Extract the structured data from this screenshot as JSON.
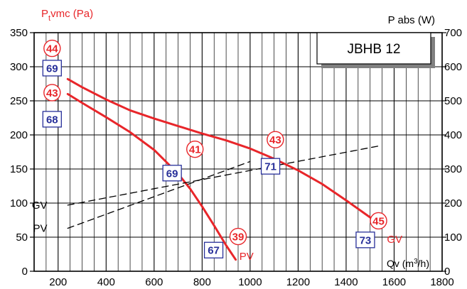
{
  "chart_data": {
    "type": "line",
    "title_box": "JBHB 12",
    "y_left_label_main": "P",
    "y_left_label_sub": "t",
    "y_left_label_rest": "vmc (Pa)",
    "y_right_label": "P  abs (W)",
    "x_label_main": "Qv (m",
    "x_label_sup": "3",
    "x_label_rest": "/h)",
    "xlim": [
      100,
      1800
    ],
    "ylim_left": [
      0,
      350
    ],
    "ylim_right": [
      0,
      700
    ],
    "x_ticks": [
      200,
      400,
      600,
      800,
      1000,
      1200,
      1400,
      1600,
      1800
    ],
    "x_minor_step": 50,
    "y_left_ticks": [
      0,
      50,
      100,
      150,
      200,
      250,
      300,
      350
    ],
    "y_right_ticks": [
      0,
      100,
      200,
      300,
      400,
      500,
      600,
      700
    ],
    "grid": true,
    "series": [
      {
        "name": "PV",
        "kind": "pressure",
        "color": "#e8262a",
        "x": [
          240,
          300,
          400,
          500,
          600,
          700,
          750,
          800,
          850,
          900,
          940
        ],
        "y": [
          260,
          247,
          226,
          204,
          178,
          143,
          121,
          95,
          67,
          38,
          17
        ]
      },
      {
        "name": "GV",
        "kind": "pressure",
        "color": "#e8262a",
        "x": [
          240,
          300,
          400,
          500,
          600,
          700,
          800,
          900,
          1000,
          1100,
          1200,
          1300,
          1400,
          1500,
          1550
        ],
        "y": [
          282,
          270,
          252,
          236,
          224,
          213,
          202,
          192,
          180,
          165,
          148,
          128,
          104,
          79,
          65
        ]
      },
      {
        "name": "GV",
        "kind": "power",
        "color": "#000000",
        "dashed": true,
        "x": [
          240,
          1540
        ],
        "y": [
          97,
          184
        ]
      },
      {
        "name": "PV",
        "kind": "power",
        "color": "#000000",
        "dashed": true,
        "x": [
          240,
          1000
        ],
        "y": [
          63,
          161
        ]
      }
    ],
    "series_labels": [
      {
        "text": "GV",
        "x": 155,
        "y": 97,
        "color": "#000000",
        "anchor": "end"
      },
      {
        "text": "PV",
        "x": 155,
        "y": 63,
        "color": "#000000",
        "anchor": "end"
      },
      {
        "text": "PV",
        "x": 955,
        "y": 22,
        "color": "#e8262a",
        "anchor": "start"
      },
      {
        "text": "GV",
        "x": 1570,
        "y": 47,
        "color": "#e8262a",
        "anchor": "start"
      }
    ],
    "sound_power_circles": [
      {
        "value": "44",
        "x": 175,
        "y": 327
      },
      {
        "value": "43",
        "x": 175,
        "y": 262
      },
      {
        "value": "41",
        "x": 770,
        "y": 179
      },
      {
        "value": "43",
        "x": 1105,
        "y": 193
      },
      {
        "value": "39",
        "x": 950,
        "y": 51
      },
      {
        "value": "45",
        "x": 1535,
        "y": 74
      }
    ],
    "sound_pressure_boxes": [
      {
        "value": "69",
        "x": 175,
        "y": 298
      },
      {
        "value": "68",
        "x": 175,
        "y": 223
      },
      {
        "value": "69",
        "x": 675,
        "y": 144
      },
      {
        "value": "71",
        "x": 1085,
        "y": 154
      },
      {
        "value": "67",
        "x": 848,
        "y": 31
      },
      {
        "value": "73",
        "x": 1480,
        "y": 46
      }
    ],
    "colors": {
      "axis": "#000000",
      "grid": "#000000",
      "red": "#e8262a",
      "blue": "#28309a",
      "box_shadow": "#808080"
    }
  }
}
